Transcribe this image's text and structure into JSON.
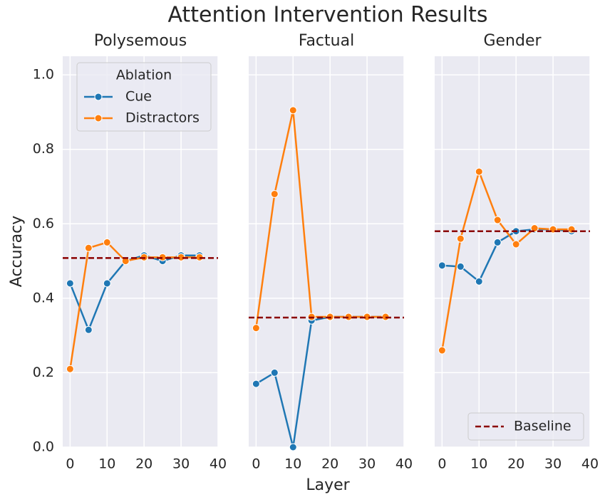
{
  "title": "Attention Intervention Results",
  "xlabel": "Layer",
  "ylabel": "Accuracy",
  "chart_data": [
    {
      "type": "line",
      "title": "Polysemous",
      "legend": "upper left",
      "legend_title": "Ablation",
      "x": [
        0,
        5,
        10,
        15,
        20,
        25,
        30,
        35
      ],
      "series": [
        {
          "name": "Cue",
          "color": "#1f77b4",
          "values": [
            0.44,
            0.315,
            0.44,
            0.5,
            0.515,
            0.5,
            0.515,
            0.515
          ]
        },
        {
          "name": "Distractors",
          "color": "#ff7f0e",
          "values": [
            0.21,
            0.535,
            0.55,
            0.5,
            0.51,
            0.51,
            0.51,
            0.51
          ]
        }
      ],
      "baseline": {
        "value": 0.508,
        "color": "#8b0000"
      },
      "xlim": [
        -2,
        40
      ],
      "xticks": [
        0,
        10,
        20,
        30,
        40
      ],
      "ylim": [
        0,
        1.05
      ],
      "yticks": [
        {
          "value": 0,
          "label": "0.0"
        },
        {
          "value": 0.2,
          "label": "0.2"
        },
        {
          "value": 0.4,
          "label": "0.4"
        },
        {
          "value": 0.6,
          "label": "0.6"
        },
        {
          "value": 0.8,
          "label": "0.8"
        },
        {
          "value": 1,
          "label": "1.0"
        }
      ],
      "grid": true
    },
    {
      "type": "line",
      "title": "Factual",
      "x": [
        0,
        5,
        10,
        15,
        20,
        25,
        30,
        35
      ],
      "series": [
        {
          "color": "#1f77b4",
          "values": [
            0.17,
            0.2,
            0.0,
            0.34,
            0.35,
            0.35,
            0.35,
            0.35
          ]
        },
        {
          "color": "#ff7f0e",
          "values": [
            0.32,
            0.68,
            0.905,
            0.35,
            0.35,
            0.35,
            0.35,
            0.35
          ]
        }
      ],
      "baseline": {
        "value": 0.348,
        "color": "#8b0000"
      },
      "xlim": [
        -2,
        40
      ],
      "xticks": [
        0,
        10,
        20,
        30,
        40
      ],
      "ylim": [
        0,
        1.05
      ],
      "yticks": [
        0,
        0.2,
        0.4,
        0.6,
        0.8,
        1
      ],
      "grid": true
    },
    {
      "type": "line",
      "title": "Gender",
      "legend": "lower right",
      "x": [
        0,
        5,
        10,
        15,
        20,
        25,
        30,
        35
      ],
      "series": [
        {
          "color": "#1f77b4",
          "values": [
            0.488,
            0.485,
            0.445,
            0.55,
            0.58,
            0.585,
            0.585,
            0.58
          ]
        },
        {
          "color": "#ff7f0e",
          "values": [
            0.26,
            0.56,
            0.74,
            0.61,
            0.545,
            0.588,
            0.585,
            0.585
          ]
        }
      ],
      "baseline": {
        "name": "Baseline",
        "value": 0.58,
        "color": "#8b0000"
      },
      "xlim": [
        -2,
        40
      ],
      "xticks": [
        0,
        10,
        20,
        30,
        40
      ],
      "ylim": [
        0,
        1.05
      ],
      "yticks": [
        0,
        0.2,
        0.4,
        0.6,
        0.8,
        1
      ],
      "grid": true
    }
  ]
}
